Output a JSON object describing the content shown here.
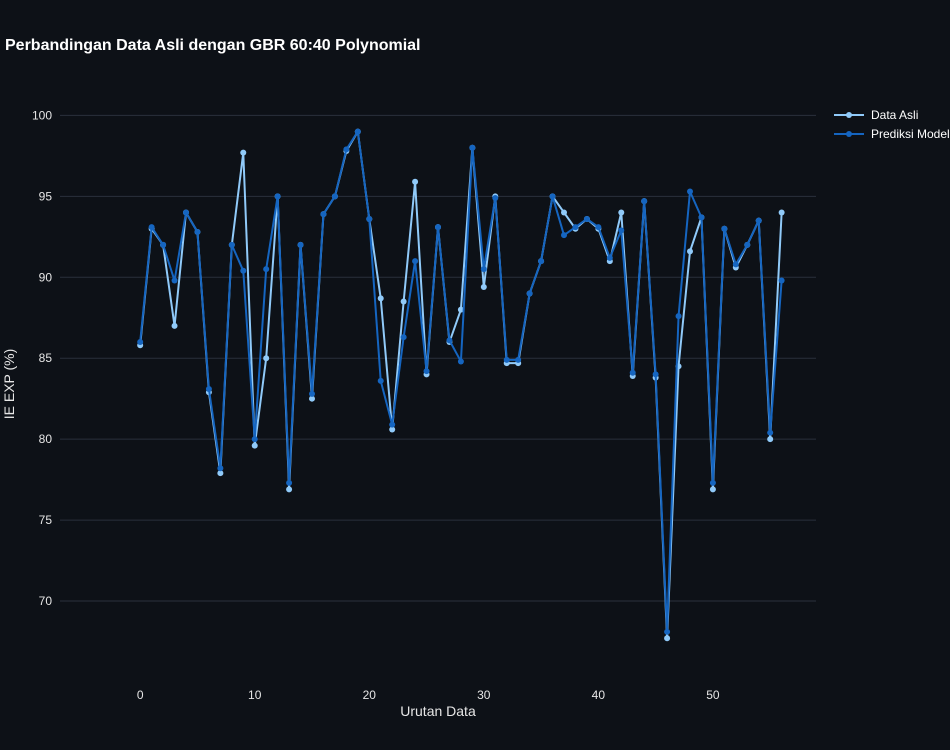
{
  "chart_data": {
    "type": "line",
    "title": "Perbandingan Data Asli dengan GBR 60:40 Polynomial",
    "xlabel": "Urutan Data",
    "ylabel": "IE EXP (%)",
    "xlim": [
      -7,
      59
    ],
    "ylim": [
      65,
      102
    ],
    "x_ticks": [
      0,
      10,
      20,
      30,
      40,
      50
    ],
    "y_ticks": [
      70,
      75,
      80,
      85,
      90,
      95,
      100
    ],
    "x_tick_labels": [
      "0",
      "10",
      "20",
      "30",
      "40",
      "50"
    ],
    "y_tick_labels": [
      "70",
      "75",
      "80",
      "85",
      "90",
      "95",
      "100"
    ],
    "grid": true,
    "legend_position": "top-right",
    "x": [
      0,
      1,
      2,
      3,
      4,
      5,
      6,
      7,
      8,
      9,
      10,
      11,
      12,
      13,
      14,
      15,
      16,
      17,
      18,
      19,
      20,
      21,
      22,
      23,
      24,
      25,
      26,
      27,
      28,
      29,
      30,
      31,
      32,
      33,
      34,
      35,
      36,
      37,
      38,
      39,
      40,
      41,
      42,
      43,
      44,
      45,
      46,
      47,
      48,
      49,
      50,
      51,
      52,
      53,
      54,
      55,
      56
    ],
    "series": [
      {
        "name": "Data Asli",
        "color": "#90caf9",
        "values": [
          85.8,
          93,
          92,
          87,
          94,
          92.8,
          82.9,
          77.9,
          92,
          97.7,
          79.6,
          85,
          95,
          76.9,
          92,
          82.5,
          93.9,
          95,
          97.8,
          99,
          93.6,
          88.7,
          80.6,
          88.5,
          95.9,
          84,
          93.1,
          86,
          88,
          98,
          89.4,
          95,
          84.7,
          84.7,
          89,
          91,
          95,
          94,
          93,
          93.6,
          93,
          91,
          94,
          83.9,
          94.7,
          83.8,
          67.7,
          84.5,
          91.6,
          93.7,
          76.9,
          93,
          90.6,
          92,
          93.5,
          80,
          94
        ]
      },
      {
        "name": "Prediksi Model",
        "color": "#1565c0",
        "values": [
          86,
          93.1,
          92,
          89.8,
          94,
          92.8,
          83.1,
          78.2,
          92,
          90.4,
          80,
          90.5,
          95,
          77.3,
          92,
          82.8,
          93.9,
          95,
          97.9,
          99,
          93.6,
          83.6,
          80.9,
          86.3,
          91,
          84.2,
          93.1,
          86.1,
          84.8,
          98,
          90.5,
          94.9,
          84.9,
          84.9,
          89,
          91,
          95,
          92.6,
          93.1,
          93.6,
          93.1,
          91.2,
          92.9,
          84.1,
          94.7,
          84,
          68.1,
          87.6,
          95.3,
          93.7,
          77.3,
          93,
          90.8,
          92,
          93.5,
          80.4,
          89.8
        ]
      }
    ]
  }
}
